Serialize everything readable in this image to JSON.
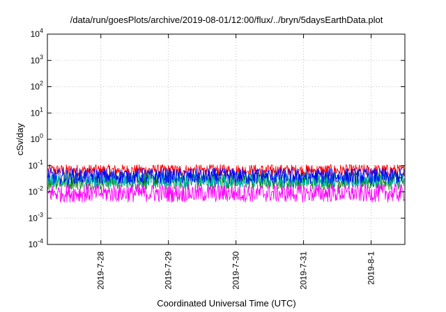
{
  "chart_data": {
    "type": "line",
    "title": "/data/run/goesPlots/archive/2019-08-01/12:00/flux/../bryn/5daysEarthData.plot",
    "xlabel": "Coordinated Universal Time (UTC)",
    "ylabel": "cSv/day",
    "y_scale": "log",
    "ylim": [
      0.0001,
      10000
    ],
    "xlim": [
      "2019-07-27T05:00",
      "2019-08-01T12:00"
    ],
    "grid": true,
    "x_ticks": [
      {
        "label": "2019-7-28",
        "value": "2019-07-28"
      },
      {
        "label": "2019-7-29",
        "value": "2019-07-29"
      },
      {
        "label": "2019-7-30",
        "value": "2019-07-30"
      },
      {
        "label": "2019-7-31",
        "value": "2019-07-31"
      },
      {
        "label": "2019-8-1",
        "value": "2019-08-01"
      }
    ],
    "y_ticks": [
      {
        "base": "10",
        "exp": "-4",
        "value": 0.0001
      },
      {
        "base": "10",
        "exp": "-3",
        "value": 0.001
      },
      {
        "base": "10",
        "exp": "-2",
        "value": 0.01
      },
      {
        "base": "10",
        "exp": "-1",
        "value": 0.1
      },
      {
        "base": "10",
        "exp": "0",
        "value": 1
      },
      {
        "base": "10",
        "exp": "1",
        "value": 10
      },
      {
        "base": "10",
        "exp": "2",
        "value": 100
      },
      {
        "base": "10",
        "exp": "3",
        "value": 1000
      },
      {
        "base": "10",
        "exp": "4",
        "value": 10000
      }
    ],
    "series": [
      {
        "color": "#ff0000",
        "band": [
          0.04,
          0.11
        ]
      },
      {
        "color": "#008000",
        "band": [
          0.012,
          0.06
        ]
      },
      {
        "color": "#00b8b8",
        "band": [
          0.015,
          0.05
        ]
      },
      {
        "color": "#0000ff",
        "band": [
          0.02,
          0.08
        ]
      },
      {
        "color": "#ff00ff",
        "band": [
          0.004,
          0.02
        ]
      }
    ]
  }
}
